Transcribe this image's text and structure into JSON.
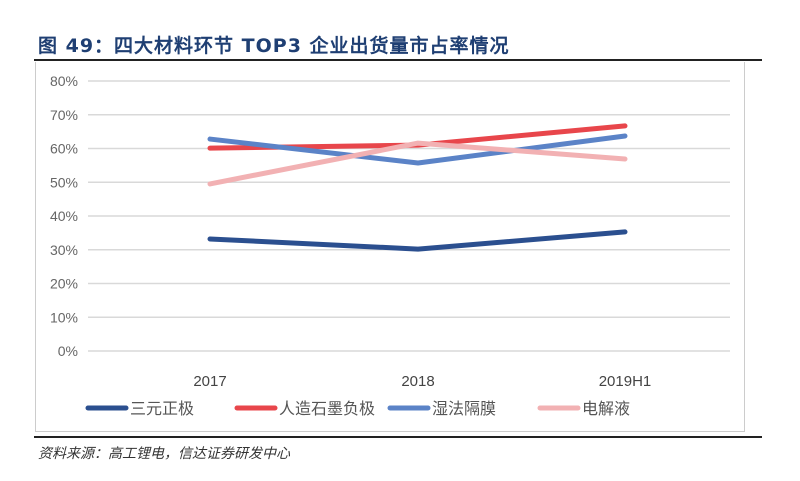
{
  "title": "图 49：四大材料环节 TOP3 企业出货量市占率情况",
  "source": "资料来源：高工锂电，信达证券研发中心",
  "chart_data": {
    "type": "line",
    "title": "图 49：四大材料环节 TOP3 企业出货量市占率情况",
    "categories": [
      "2017",
      "2018",
      "2019H1"
    ],
    "ylim": [
      0,
      80
    ],
    "yticks": [
      "0%",
      "10%",
      "20%",
      "30%",
      "40%",
      "50%",
      "60%",
      "70%",
      "80%"
    ],
    "grid": true,
    "legend": "bottom",
    "series": [
      {
        "name": "三元正极",
        "values": [
          33.2,
          30.2,
          35.3
        ],
        "color": "#2b4f8f"
      },
      {
        "name": "人造石墨负极",
        "values": [
          60.1,
          61.0,
          66.7
        ],
        "color": "#e8464b"
      },
      {
        "name": "湿法隔膜",
        "values": [
          62.8,
          55.7,
          63.7
        ],
        "color": "#5b83c7"
      },
      {
        "name": "电解液",
        "values": [
          49.5,
          61.6,
          56.9
        ],
        "color": "#f2b1b3"
      }
    ]
  }
}
